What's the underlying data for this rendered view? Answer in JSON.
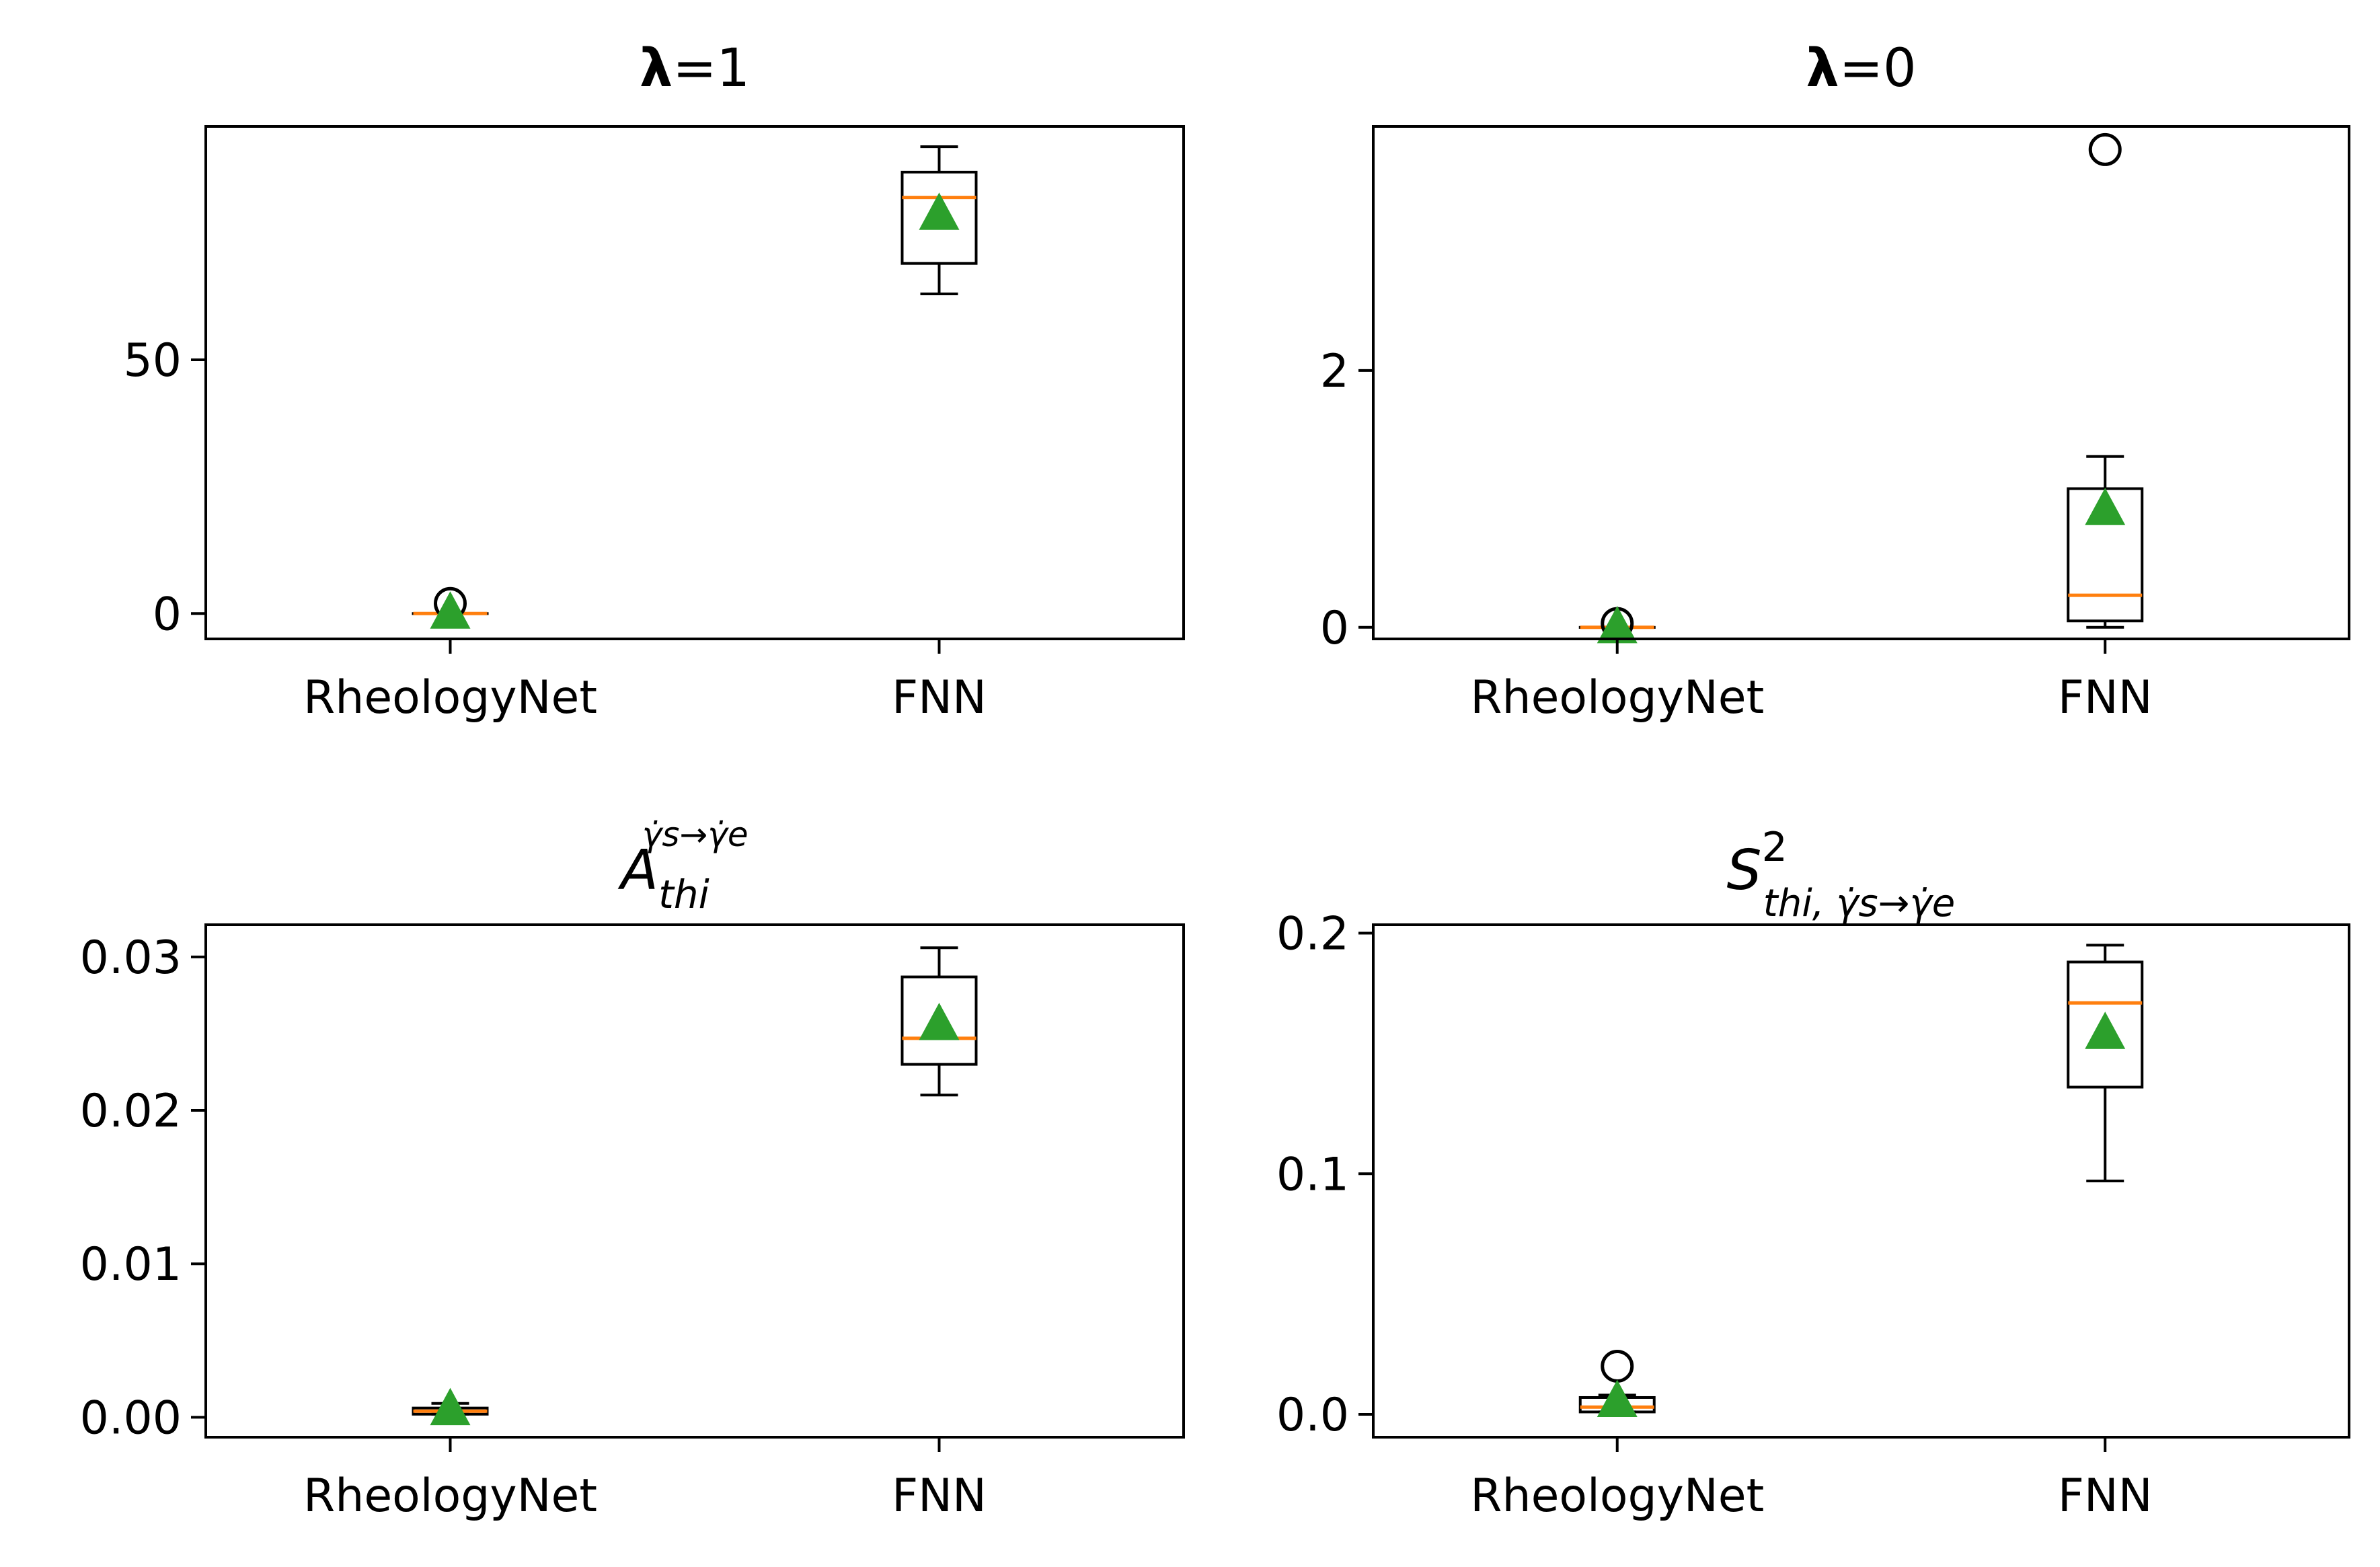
{
  "chart_data": [
    {
      "type": "boxplot",
      "title": {
        "symbol": "λ",
        "rest": "=1"
      },
      "categories": [
        "RheologyNet",
        "FNN"
      ],
      "ylim": [
        -5,
        96
      ],
      "yticks": [
        0,
        50
      ],
      "ytick_labels": [
        "0",
        "50"
      ],
      "boxes": [
        {
          "category": "RheologyNet",
          "whislo": 0,
          "q1": 0,
          "med": 0,
          "q3": 0,
          "whishi": 0,
          "mean": 0.4,
          "fliers": [
            2
          ]
        },
        {
          "category": "FNN",
          "whislo": 63,
          "q1": 69,
          "med": 82,
          "q3": 87,
          "whishi": 92,
          "mean": 79,
          "fliers": []
        }
      ]
    },
    {
      "type": "boxplot",
      "title": {
        "symbol": "λ",
        "rest": "=0"
      },
      "categories": [
        "RheologyNet",
        "FNN"
      ],
      "ylim": [
        -0.09,
        3.9
      ],
      "yticks": [
        0,
        2
      ],
      "ytick_labels": [
        "0",
        "2"
      ],
      "boxes": [
        {
          "category": "RheologyNet",
          "whislo": 0,
          "q1": 0,
          "med": 0,
          "q3": 0,
          "whishi": 0,
          "mean": 0.01,
          "fliers": [
            0.03
          ]
        },
        {
          "category": "FNN",
          "whislo": 0,
          "q1": 0.05,
          "med": 0.25,
          "q3": 1.08,
          "whishi": 1.33,
          "mean": 0.93,
          "fliers": [
            3.72
          ]
        }
      ]
    },
    {
      "type": "boxplot",
      "title": {
        "base": "A",
        "sub": "thi",
        "sup": "γ̇s→γ̇e"
      },
      "categories": [
        "RheologyNet",
        "FNN"
      ],
      "ylim": [
        -0.0013,
        0.0321
      ],
      "yticks": [
        0,
        0.01,
        0.02,
        0.03
      ],
      "ytick_labels": [
        "0.00",
        "0.01",
        "0.02",
        "0.03"
      ],
      "boxes": [
        {
          "category": "RheologyNet",
          "whislo": 0.0002,
          "q1": 0.0002,
          "med": 0.0004,
          "q3": 0.0006,
          "whishi": 0.0009,
          "mean": 0.0006,
          "fliers": []
        },
        {
          "category": "FNN",
          "whislo": 0.021,
          "q1": 0.023,
          "med": 0.0247,
          "q3": 0.0287,
          "whishi": 0.0306,
          "mean": 0.0257,
          "fliers": []
        }
      ]
    },
    {
      "type": "boxplot",
      "title": {
        "base": "S",
        "sup": "2",
        "sub": "thi, γ̇s→γ̇e"
      },
      "categories": [
        "RheologyNet",
        "FNN"
      ],
      "ylim": [
        -0.0095,
        0.2035
      ],
      "yticks": [
        0,
        0.1,
        0.2
      ],
      "ytick_labels": [
        "0.0",
        "0.1",
        "0.2"
      ],
      "boxes": [
        {
          "category": "RheologyNet",
          "whislo": 0.001,
          "q1": 0.001,
          "med": 0.003,
          "q3": 0.007,
          "whishi": 0.008,
          "mean": 0.006,
          "fliers": [
            0.02
          ]
        },
        {
          "category": "FNN",
          "whislo": 0.097,
          "q1": 0.136,
          "med": 0.171,
          "q3": 0.188,
          "whishi": 0.195,
          "mean": 0.159,
          "fliers": []
        }
      ]
    }
  ],
  "colors": {
    "median": "#ff7f0e",
    "mean": "#2ca02c",
    "box": "#000000"
  }
}
